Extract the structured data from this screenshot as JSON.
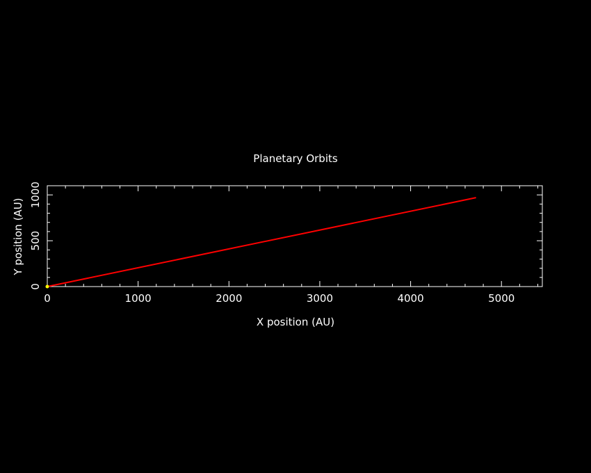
{
  "chart_data": {
    "type": "line",
    "title": "Planetary Orbits",
    "xlabel": "X position (AU)",
    "ylabel": "Y position (AU)",
    "xlim": [
      0,
      5450
    ],
    "ylim": [
      0,
      1100
    ],
    "xticks": [
      0,
      1000,
      2000,
      3000,
      4000,
      5000
    ],
    "yticks": [
      0,
      500,
      1000
    ],
    "xtick_labels": [
      "0",
      "1000",
      "2000",
      "3000",
      "4000",
      "5000"
    ],
    "ytick_labels": [
      "0",
      "500",
      "1000"
    ],
    "grid": false,
    "background": "#000000",
    "foreground": "#ffffff",
    "series": [
      {
        "name": "orbit",
        "color": "#ff0000",
        "x": [
          0,
          4720
        ],
        "y": [
          0,
          970
        ]
      }
    ],
    "markers": [
      {
        "name": "sun",
        "x": 0,
        "y": 0,
        "color": "#ffff00"
      }
    ]
  }
}
